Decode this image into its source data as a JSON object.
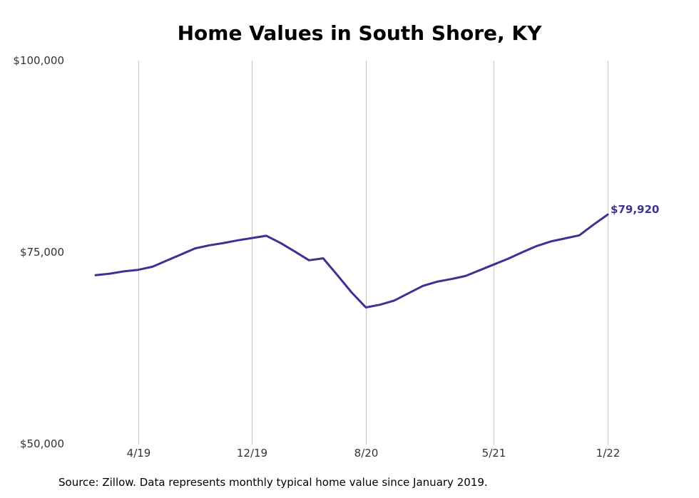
{
  "chart_data": {
    "type": "line",
    "title": "Home Values in South Shore, KY",
    "xlabel": "",
    "ylabel": "",
    "x_start": "2019-01",
    "x_end": "2022-02",
    "x_ticks": [
      {
        "label": "4/19",
        "date": "2019-04"
      },
      {
        "label": "12/19",
        "date": "2019-12"
      },
      {
        "label": "8/20",
        "date": "2020-08"
      },
      {
        "label": "5/21",
        "date": "2021-05"
      },
      {
        "label": "1/22",
        "date": "2022-01"
      }
    ],
    "y_ticks": [
      {
        "label": "$50,000",
        "value": 50000
      },
      {
        "label": "$75,000",
        "value": 75000
      },
      {
        "label": "$100,000",
        "value": 100000
      }
    ],
    "ylim": [
      50000,
      100000
    ],
    "grid": "vertical",
    "line_color": "#3b3394",
    "series": [
      {
        "points": [
          {
            "date": "2019-01",
            "value": 72000
          },
          {
            "date": "2019-02",
            "value": 72200
          },
          {
            "date": "2019-03",
            "value": 72500
          },
          {
            "date": "2019-04",
            "value": 72700
          },
          {
            "date": "2019-05",
            "value": 73100
          },
          {
            "date": "2019-06",
            "value": 73900
          },
          {
            "date": "2019-07",
            "value": 74700
          },
          {
            "date": "2019-08",
            "value": 75500
          },
          {
            "date": "2019-09",
            "value": 75900
          },
          {
            "date": "2019-10",
            "value": 76200
          },
          {
            "date": "2019-11",
            "value": 76550
          },
          {
            "date": "2019-12",
            "value": 76850
          },
          {
            "date": "2020-01",
            "value": 77150
          },
          {
            "date": "2020-02",
            "value": 76200
          },
          {
            "date": "2020-03",
            "value": 75100
          },
          {
            "date": "2020-04",
            "value": 73950
          },
          {
            "date": "2020-05",
            "value": 74200
          },
          {
            "date": "2020-06",
            "value": 72000
          },
          {
            "date": "2020-07",
            "value": 69750
          },
          {
            "date": "2020-08",
            "value": 67800
          },
          {
            "date": "2020-09",
            "value": 68150
          },
          {
            "date": "2020-10",
            "value": 68700
          },
          {
            "date": "2020-11",
            "value": 69650
          },
          {
            "date": "2020-12",
            "value": 70600
          },
          {
            "date": "2021-01",
            "value": 71150
          },
          {
            "date": "2021-02",
            "value": 71500
          },
          {
            "date": "2021-03",
            "value": 71900
          },
          {
            "date": "2021-04",
            "value": 72650
          },
          {
            "date": "2021-05",
            "value": 73400
          },
          {
            "date": "2021-06",
            "value": 74150
          },
          {
            "date": "2021-07",
            "value": 75000
          },
          {
            "date": "2021-08",
            "value": 75800
          },
          {
            "date": "2021-09",
            "value": 76400
          },
          {
            "date": "2021-10",
            "value": 76800
          },
          {
            "date": "2021-11",
            "value": 77200
          },
          {
            "date": "2021-12",
            "value": 78600
          },
          {
            "date": "2022-01",
            "value": 79920
          }
        ]
      }
    ],
    "end_label": "$79,920"
  },
  "source_note": "Source: Zillow. Data represents monthly typical home value since January 2019."
}
